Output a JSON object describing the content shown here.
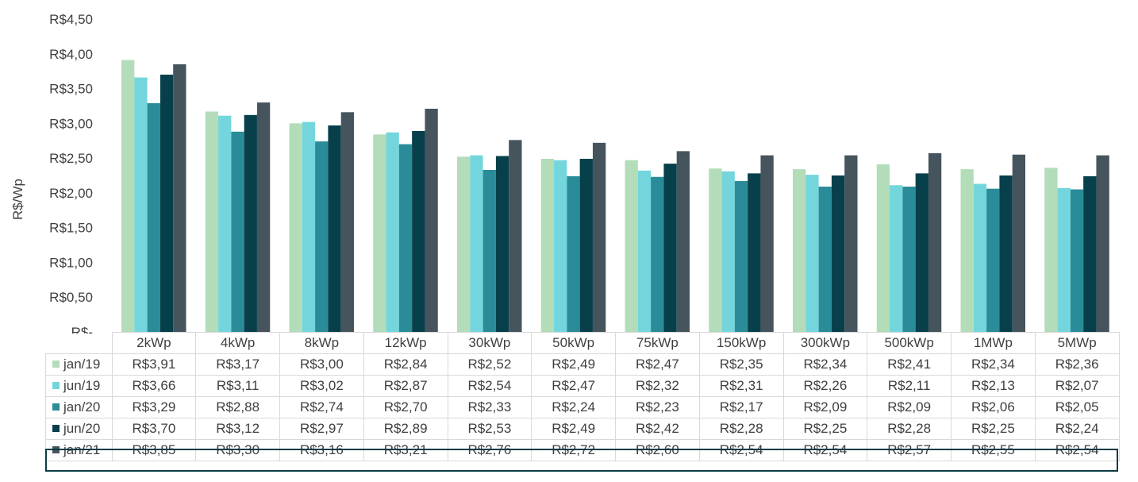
{
  "chart_data": {
    "type": "bar",
    "ylabel": "R$/Wp",
    "ylim": [
      0,
      4.5
    ],
    "y_tick_labels": [
      "R$-",
      "R$0,50",
      "R$1,00",
      "R$1,50",
      "R$2,00",
      "R$2,50",
      "R$3,00",
      "R$3,50",
      "R$4,00",
      "R$4,50"
    ],
    "y_tick_values": [
      0,
      0.5,
      1,
      1.5,
      2,
      2.5,
      3,
      3.5,
      4,
      4.5
    ],
    "grid": false,
    "legend": "data-table",
    "categories": [
      "2kWp",
      "4kWp",
      "8kWp",
      "12kWp",
      "30kWp",
      "50kWp",
      "75kWp",
      "150kWp",
      "300kWp",
      "500kWp",
      "1MWp",
      "5MWp"
    ],
    "series": [
      {
        "name": "jan/19",
        "color": "#b3dcb9",
        "values": [
          3.91,
          3.17,
          3.0,
          2.84,
          2.52,
          2.49,
          2.47,
          2.35,
          2.34,
          2.41,
          2.34,
          2.36
        ],
        "labels": [
          "R$3,91",
          "R$3,17",
          "R$3,00",
          "R$2,84",
          "R$2,52",
          "R$2,49",
          "R$2,47",
          "R$2,35",
          "R$2,34",
          "R$2,41",
          "R$2,34",
          "R$2,36"
        ]
      },
      {
        "name": "jun/19",
        "color": "#74d6dc",
        "values": [
          3.66,
          3.11,
          3.02,
          2.87,
          2.54,
          2.47,
          2.32,
          2.31,
          2.26,
          2.11,
          2.13,
          2.07
        ],
        "labels": [
          "R$3,66",
          "R$3,11",
          "R$3,02",
          "R$2,87",
          "R$2,54",
          "R$2,47",
          "R$2,32",
          "R$2,31",
          "R$2,26",
          "R$2,11",
          "R$2,13",
          "R$2,07"
        ]
      },
      {
        "name": "jan/20",
        "color": "#2a8c98",
        "values": [
          3.29,
          2.88,
          2.74,
          2.7,
          2.33,
          2.24,
          2.23,
          2.17,
          2.09,
          2.09,
          2.06,
          2.05
        ],
        "labels": [
          "R$3,29",
          "R$2,88",
          "R$2,74",
          "R$2,70",
          "R$2,33",
          "R$2,24",
          "R$2,23",
          "R$2,17",
          "R$2,09",
          "R$2,09",
          "R$2,06",
          "R$2,05"
        ]
      },
      {
        "name": "jun/20",
        "color": "#073f4b",
        "values": [
          3.7,
          3.12,
          2.97,
          2.89,
          2.53,
          2.49,
          2.42,
          2.28,
          2.25,
          2.28,
          2.25,
          2.24
        ],
        "labels": [
          "R$3,70",
          "R$3,12",
          "R$2,97",
          "R$2,89",
          "R$2,53",
          "R$2,49",
          "R$2,42",
          "R$2,28",
          "R$2,25",
          "R$2,28",
          "R$2,25",
          "R$2,24"
        ]
      },
      {
        "name": "jan/21",
        "color": "#46545e",
        "values": [
          3.85,
          3.3,
          3.16,
          3.21,
          2.76,
          2.72,
          2.6,
          2.54,
          2.54,
          2.57,
          2.55,
          2.54
        ],
        "labels": [
          "R$3,85",
          "R$3,30",
          "R$3,16",
          "R$3,21",
          "R$2,76",
          "R$2,72",
          "R$2,60",
          "R$2,54",
          "R$2,54",
          "R$2,57",
          "R$2,55",
          "R$2,54"
        ]
      }
    ],
    "highlighted_series": "jan/21",
    "highlight_color": "#0d3b45"
  }
}
